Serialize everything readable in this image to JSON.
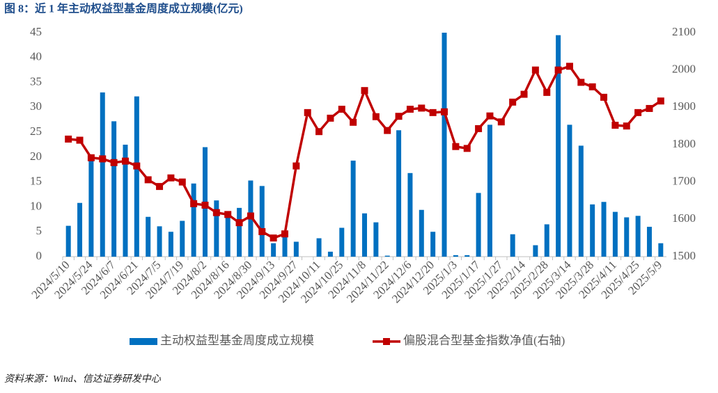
{
  "chart_data": {
    "type": "combo",
    "title": "图 8：近 1 年主动权益型基金周度成立规模(亿元)",
    "source": "资料来源：Wind、信达证券研发中心",
    "categories": [
      "2024/5/10",
      null,
      "2024/5/24",
      null,
      "2024/6/7",
      null,
      "2024/6/21",
      null,
      "2024/7/5",
      null,
      "2024/7/19",
      null,
      "2024/8/2",
      null,
      "2024/8/16",
      null,
      "2024/8/30",
      null,
      "2024/9/13",
      null,
      "2024/9/27",
      null,
      "2024/10/11",
      null,
      "2024/10/25",
      null,
      "2024/11/8",
      null,
      "2024/11/22",
      null,
      "2024/12/6",
      null,
      "2024/12/20",
      null,
      "2025/1/3",
      null,
      "2025/1/17",
      null,
      "2025/1/27",
      null,
      "2025/2/14",
      null,
      "2025/2/28",
      null,
      "2025/3/14",
      null,
      "2025/3/28",
      null,
      "2025/4/11",
      null,
      "2025/4/25",
      null,
      "2025/5/9"
    ],
    "series": [
      {
        "name": "主动权益型基金周度成立规模",
        "type": "bar",
        "color": "#0070c0",
        "values": [
          6.2,
          10.8,
          20,
          33,
          27.2,
          22.5,
          32.2,
          8,
          6.1,
          5,
          7.2,
          14.7,
          22,
          11.3,
          9,
          9.8,
          15.3,
          14.2,
          2.7,
          4.5,
          3,
          0,
          3.7,
          1,
          5.8,
          19.3,
          8.7,
          6.9,
          0.2,
          25.4,
          16.8,
          9.4,
          5,
          45,
          0.3,
          0.3,
          12.8,
          26.5,
          0,
          4.5,
          0,
          2.3,
          6.5,
          44.5,
          26.5,
          22.3,
          10.5,
          11,
          9,
          7.9,
          8.2,
          6,
          2.7
        ]
      },
      {
        "name": "偏股混合型基金指数净值(右轴)",
        "type": "line",
        "axis": "y2",
        "color": "#c00000",
        "values": [
          1815,
          1812,
          1765,
          1762,
          1752,
          1756,
          1743,
          1706,
          1688,
          1711,
          1700,
          1642,
          1638,
          1618,
          1613,
          1591,
          1609,
          1567,
          1550,
          1561,
          1743,
          1886,
          1835,
          1871,
          1895,
          1860,
          1945,
          1875,
          1838,
          1876,
          1895,
          1898,
          1886,
          1888,
          1795,
          1790,
          1843,
          1877,
          1861,
          1914,
          1935,
          2000,
          1940,
          2000,
          2010,
          1967,
          1955,
          1927,
          1852,
          1850,
          1886,
          1897,
          1917
        ]
      }
    ],
    "ylim": [
      0,
      45
    ],
    "yticks": [
      0,
      5,
      10,
      15,
      20,
      25,
      30,
      35,
      40,
      45
    ],
    "y2lim": [
      1500,
      2100
    ],
    "y2ticks": [
      1500,
      1600,
      1700,
      1800,
      1900,
      2000,
      2100
    ],
    "grid": false,
    "legend": "bottom"
  }
}
